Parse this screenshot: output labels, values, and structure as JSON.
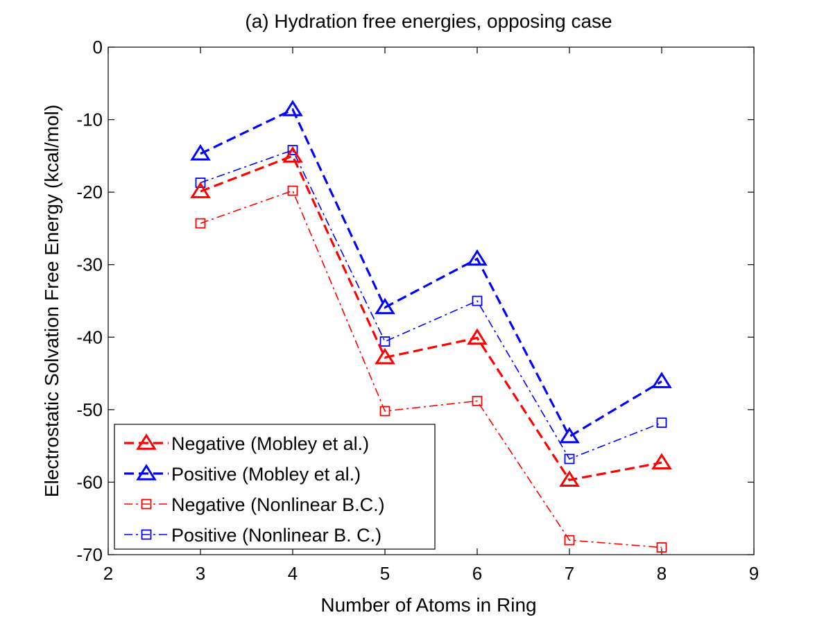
{
  "chart_data": {
    "type": "line",
    "title": "(a) Hydration free energies, opposing case",
    "xlabel": "Number of Atoms in Ring",
    "ylabel": "Electrostatic Solvation Free Energy (kcal/mol)",
    "xlim": [
      2,
      9
    ],
    "ylim": [
      -70,
      0
    ],
    "xticks": [
      2,
      3,
      4,
      5,
      6,
      7,
      8,
      9
    ],
    "yticks": [
      0,
      -10,
      -20,
      -30,
      -40,
      -50,
      -60,
      -70
    ],
    "grid": false,
    "legend_position": "bottom-left",
    "x": [
      3,
      4,
      5,
      6,
      7,
      8
    ],
    "series": [
      {
        "name": "Negative (Mobley et al.)",
        "values": [
          -19.9,
          -15.0,
          -42.8,
          -40.1,
          -59.7,
          -57.3
        ],
        "color": "#ff0000",
        "line": "dashed",
        "marker": "triangle"
      },
      {
        "name": "Positive (Mobley et al.)",
        "values": [
          -14.7,
          -8.6,
          -35.9,
          -29.2,
          -53.7,
          -46.1
        ],
        "color": "#0000ff",
        "line": "dashed",
        "marker": "triangle"
      },
      {
        "name": "Negative (Nonlinear B.C.)",
        "values": [
          -24.3,
          -19.8,
          -50.2,
          -48.8,
          -68.0,
          -69.0
        ],
        "color": "#ff0000",
        "line": "dashdot",
        "marker": "square"
      },
      {
        "name": "Positive (Nonlinear B. C.)",
        "values": [
          -18.7,
          -14.2,
          -40.6,
          -35.0,
          -56.8,
          -51.8
        ],
        "color": "#0000ff",
        "line": "dashdot",
        "marker": "square"
      }
    ]
  }
}
